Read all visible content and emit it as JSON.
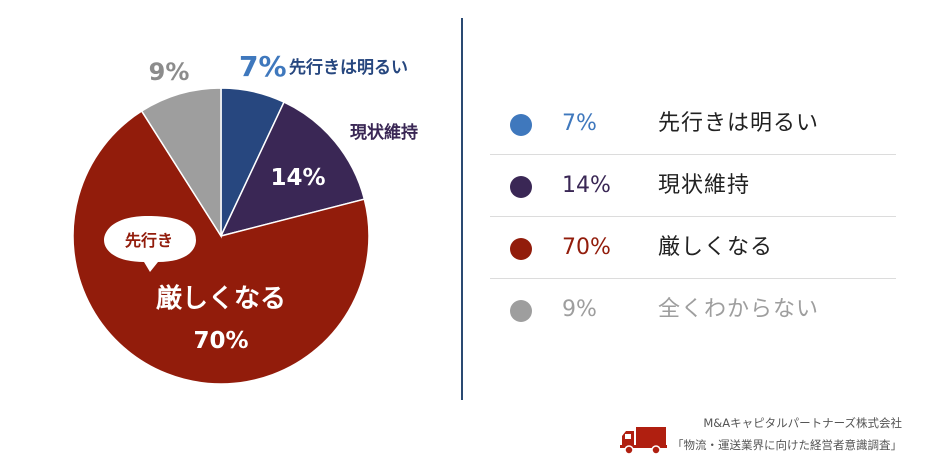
{
  "chart_data": {
    "type": "pie",
    "title": "",
    "slices": [
      {
        "label": "先行きは明るい",
        "value": 7,
        "value_label": "7%",
        "color": "#27477f",
        "legend_color": "#3f78bd"
      },
      {
        "label": "現状維持",
        "value": 14,
        "value_label": "14%",
        "color": "#3a2755",
        "legend_color": "#3a2755"
      },
      {
        "label": "厳しくなる",
        "value": 70,
        "value_label": "70%",
        "color": "#921c0b",
        "legend_color": "#921c0b"
      },
      {
        "label": "全くわからない",
        "value": 9,
        "value_label": "9%",
        "color": "#9e9e9e",
        "legend_color": "#9e9e9e"
      }
    ],
    "callout": "先行き",
    "legend_position": "right"
  },
  "footer": {
    "company": "M&Aキャピタルパートナーズ株式会社",
    "source": "「物流・運送業界に向けた経営者意識調査」"
  },
  "icons": {
    "truck": "truck-icon"
  }
}
